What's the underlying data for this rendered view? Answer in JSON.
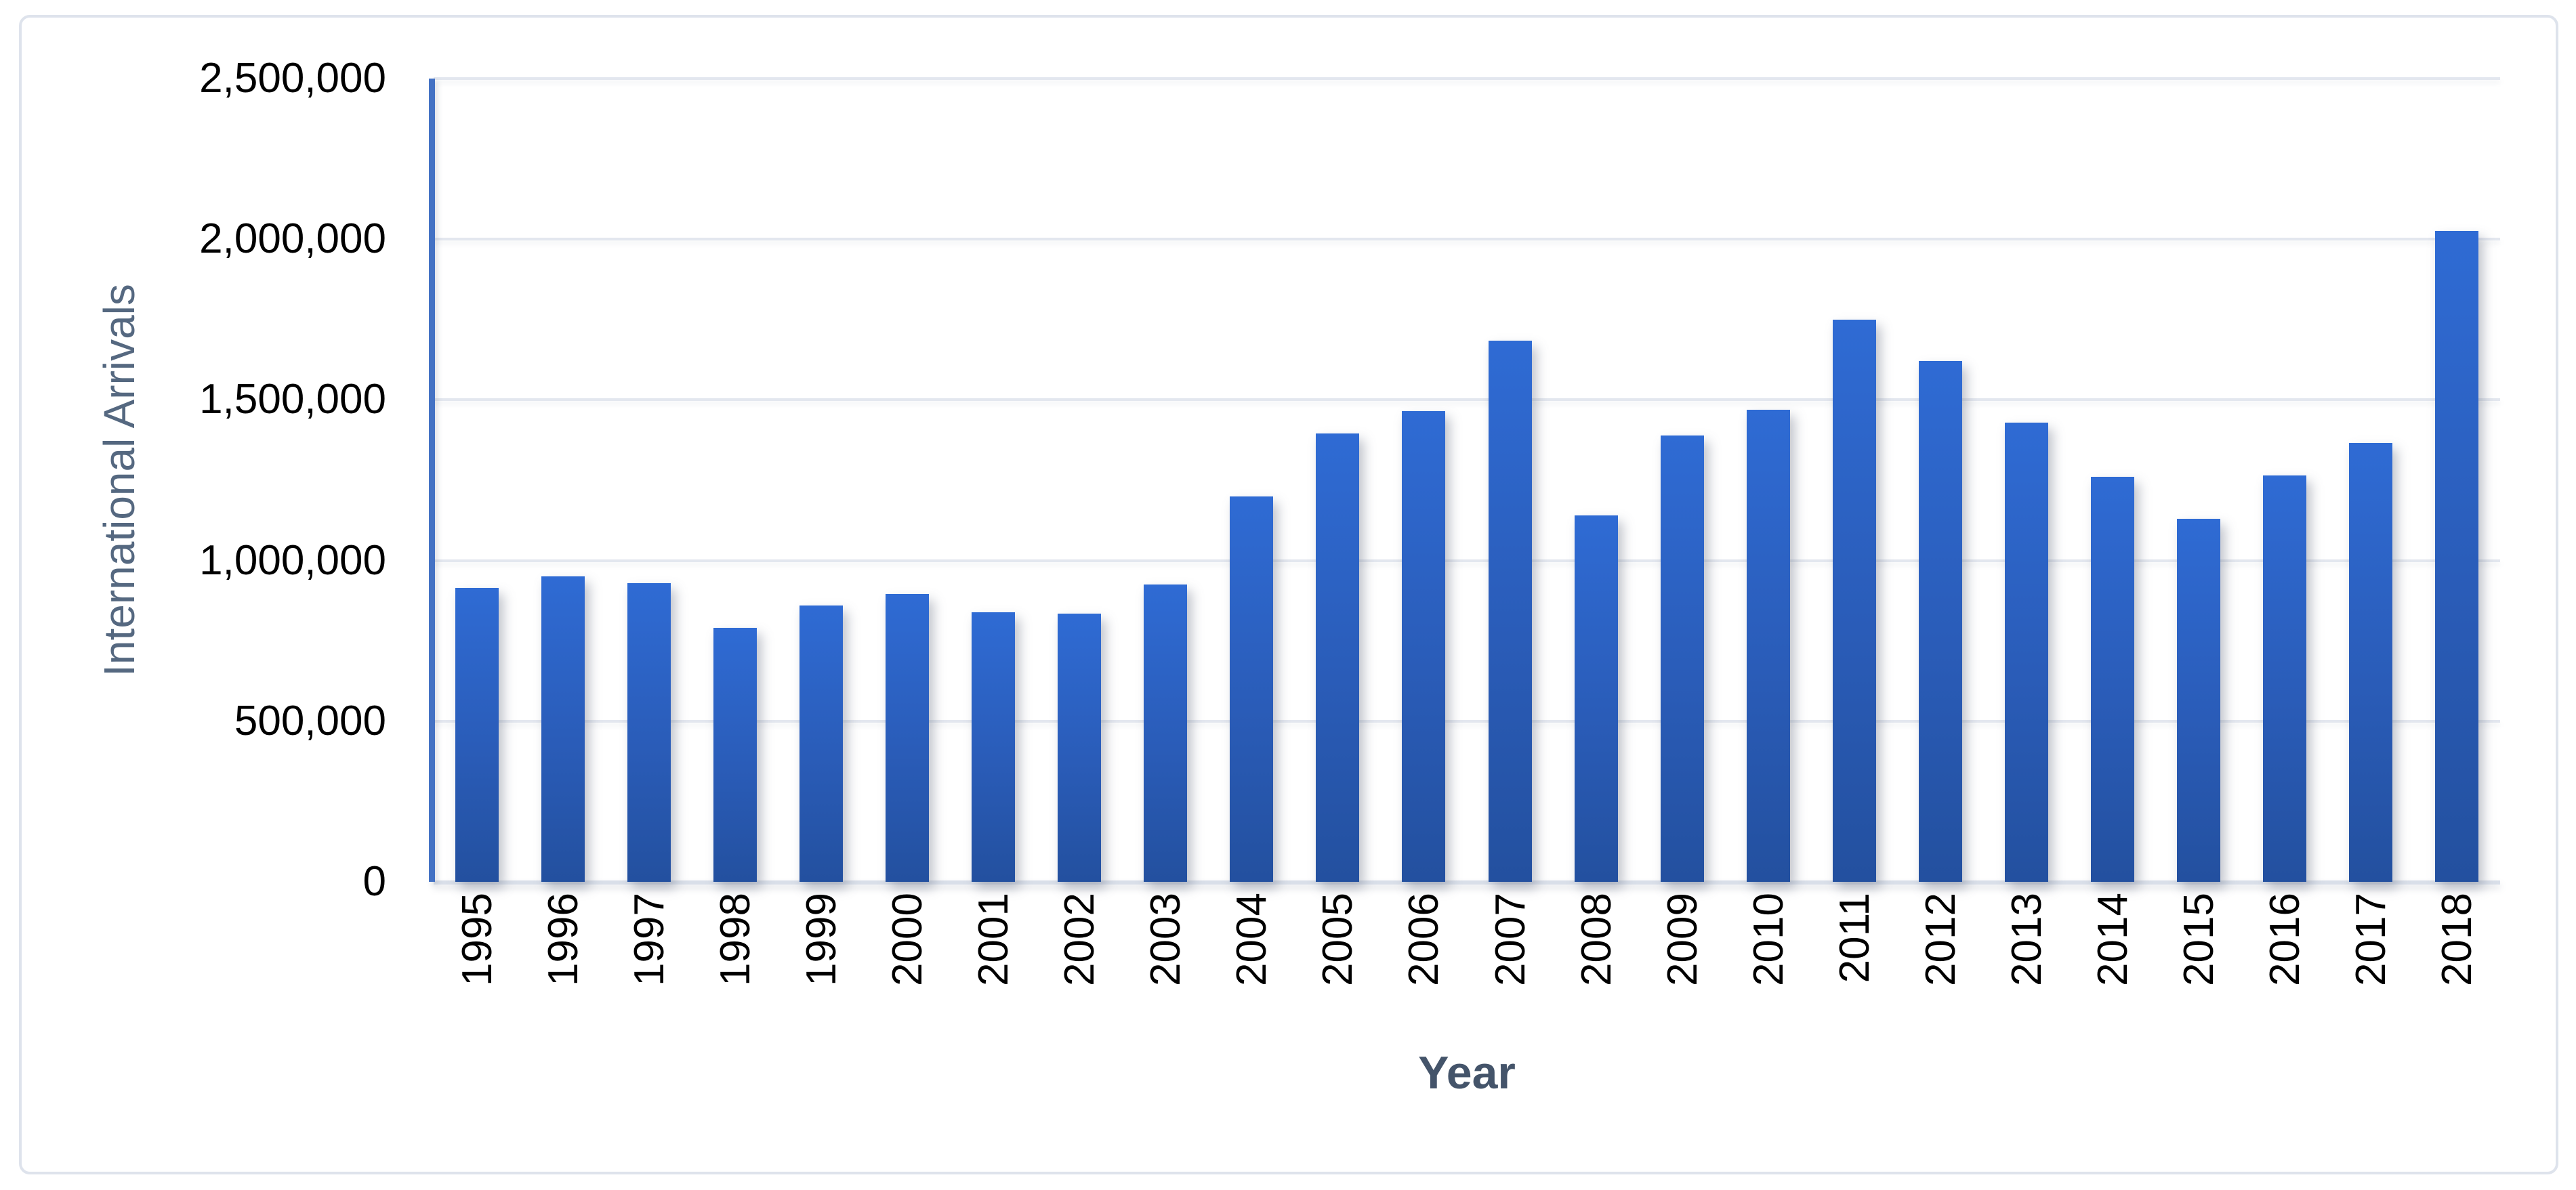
{
  "chart_data": {
    "type": "bar",
    "title": "",
    "xlabel": "Year",
    "ylabel": "International Arrivals",
    "categories": [
      "1995",
      "1996",
      "1997",
      "1998",
      "1999",
      "2000",
      "2001",
      "2002",
      "2003",
      "2004",
      "2005",
      "2006",
      "2007",
      "2008",
      "2009",
      "2010",
      "2011",
      "2012",
      "2013",
      "2014",
      "2015",
      "2016",
      "2017",
      "2018"
    ],
    "values": [
      915000,
      950000,
      930000,
      790000,
      860000,
      895000,
      840000,
      835000,
      925000,
      1200000,
      1395000,
      1465000,
      1685000,
      1140000,
      1390000,
      1470000,
      1750000,
      1620000,
      1430000,
      1260000,
      1130000,
      1265000,
      1365000,
      2025000
    ],
    "ylim": [
      0,
      2500000
    ],
    "ytick_interval": 500000,
    "ytick_labels": [
      "0",
      "500,000",
      "1,000,000",
      "1,500,000",
      "2,000,000",
      "2,500,000"
    ],
    "grid": "horizontal-gridlines-on",
    "legend": "none",
    "style": {
      "bar_gradient_top": "#2F6BD4",
      "bar_gradient_mid": "#2A5CB8",
      "bar_gradient_bottom": "#23509F",
      "y_axis_line_color": "#4472C4",
      "gridline_color": "#E3E7EF",
      "baseline_color": "#D9DFE9",
      "frame_border_color": "#DEE3EC",
      "x_title_color": "#44546A",
      "y_title_color": "#556880",
      "tick_label_color": "#000000",
      "background": "#FFFFFF"
    }
  }
}
